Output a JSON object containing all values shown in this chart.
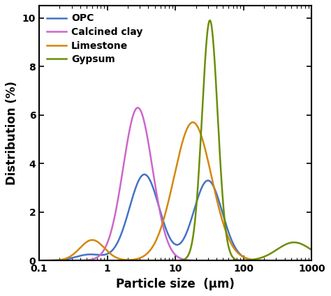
{
  "title": "",
  "xlabel": "Particle size  (μm)",
  "ylabel": "Distribution (%)",
  "xlim": [
    0.1,
    1000
  ],
  "ylim": [
    0,
    10.5
  ],
  "yticks": [
    0,
    2,
    4,
    6,
    8,
    10
  ],
  "colors": {
    "OPC": "#4472C4",
    "Calcined clay": "#CC66CC",
    "Limestone": "#D4870A",
    "Gypsum": "#6B8E00"
  },
  "legend_labels": [
    "OPC",
    "Calcined clay",
    "Limestone",
    "Gypsum"
  ],
  "background": "#ffffff",
  "figsize": [
    4.74,
    4.24
  ],
  "dpi": 100,
  "opc": {
    "peaks": [
      {
        "mu": 3.5,
        "sigma": 0.22,
        "amp": 3.55
      },
      {
        "mu": 30,
        "sigma": 0.21,
        "amp": 3.3
      },
      {
        "mu": 0.55,
        "sigma": 0.2,
        "amp": 0.25
      }
    ]
  },
  "calcined_clay": {
    "peaks": [
      {
        "mu": 2.8,
        "sigma": 0.215,
        "amp": 6.3
      }
    ]
  },
  "limestone": {
    "peaks": [
      {
        "mu": 18,
        "sigma": 0.275,
        "amp": 5.7
      },
      {
        "mu": 0.6,
        "sigma": 0.18,
        "amp": 0.85
      }
    ]
  },
  "gypsum": {
    "peaks": [
      {
        "mu": 32,
        "sigma": 0.115,
        "amp": 9.9
      },
      {
        "mu": 550,
        "sigma": 0.25,
        "amp": 0.75
      }
    ]
  }
}
